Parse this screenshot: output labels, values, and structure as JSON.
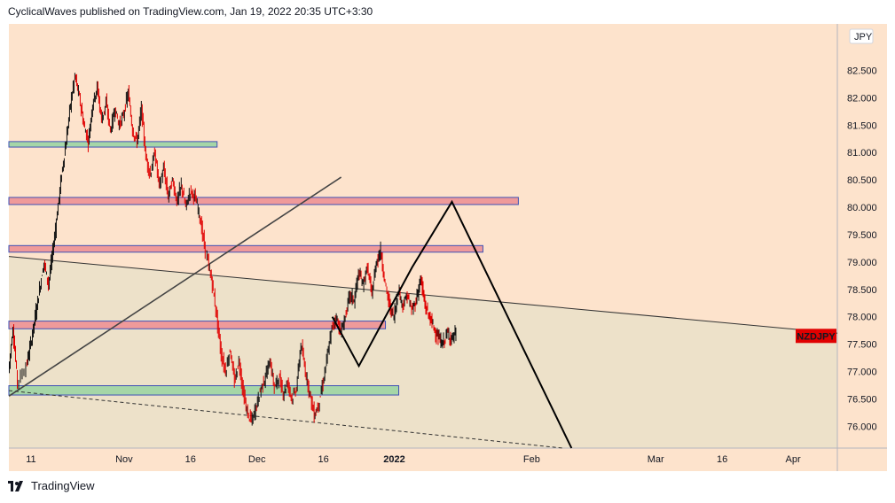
{
  "header": {
    "publisher": "CyclicalWaves published on TradingView.com, Jan 19, 2022 20:35 UTC+3:30"
  },
  "footer": {
    "brand": "TradingView"
  },
  "chart_data": {
    "type": "candlestick",
    "symbol": "NZDJPY",
    "currency": "JPY",
    "last_price": 77.65,
    "y_ticks": [
      "76.000",
      "76.500",
      "77.000",
      "77.500",
      "78.000",
      "78.500",
      "79.000",
      "79.500",
      "80.000",
      "80.500",
      "81.000",
      "81.500",
      "82.000",
      "82.500"
    ],
    "y_tick_values": [
      76.0,
      76.5,
      77.0,
      77.5,
      78.0,
      78.5,
      79.0,
      79.5,
      80.0,
      80.5,
      81.0,
      81.5,
      82.0,
      82.5
    ],
    "ylim": [
      75.6,
      83.35
    ],
    "x_labels": [
      {
        "label": "11",
        "day": 0
      },
      {
        "label": "Nov",
        "day": 21
      },
      {
        "label": "16",
        "day": 36
      },
      {
        "label": "Dec",
        "day": 51
      },
      {
        "label": "16",
        "day": 66
      },
      {
        "label": "2022",
        "day": 82
      },
      {
        "label": "Feb",
        "day": 113
      },
      {
        "label": "Mar",
        "day": 141
      },
      {
        "label": "16",
        "day": 156
      },
      {
        "label": "Apr",
        "day": 172
      }
    ],
    "xlim": [
      -5,
      182
    ],
    "price_path": [
      [
        -5,
        77.0
      ],
      [
        -4,
        77.8
      ],
      [
        -3,
        76.8
      ],
      [
        -1,
        77.1
      ],
      [
        0,
        77.5
      ],
      [
        1,
        78.0
      ],
      [
        2,
        78.5
      ],
      [
        3,
        79.0
      ],
      [
        4,
        78.6
      ],
      [
        5,
        79.2
      ],
      [
        6,
        79.9
      ],
      [
        7,
        80.6
      ],
      [
        8,
        81.2
      ],
      [
        9,
        81.9
      ],
      [
        10,
        82.4
      ],
      [
        11,
        82.0
      ],
      [
        12,
        81.5
      ],
      [
        13,
        81.2
      ],
      [
        14,
        81.9
      ],
      [
        15,
        82.2
      ],
      [
        16,
        81.6
      ],
      [
        17,
        81.9
      ],
      [
        18,
        81.4
      ],
      [
        19,
        81.8
      ],
      [
        20,
        81.5
      ],
      [
        21,
        81.7
      ],
      [
        22,
        82.1
      ],
      [
        23,
        81.4
      ],
      [
        24,
        81.2
      ],
      [
        25,
        81.8
      ],
      [
        26,
        80.9
      ],
      [
        27,
        80.6
      ],
      [
        28,
        81.0
      ],
      [
        29,
        80.4
      ],
      [
        30,
        80.7
      ],
      [
        31,
        80.2
      ],
      [
        32,
        80.5
      ],
      [
        33,
        80.1
      ],
      [
        34,
        80.4
      ],
      [
        35,
        80.0
      ],
      [
        36,
        80.3
      ],
      [
        37,
        80.2
      ],
      [
        38,
        79.9
      ],
      [
        39,
        79.4
      ],
      [
        40,
        79.0
      ],
      [
        41,
        78.6
      ],
      [
        42,
        78.0
      ],
      [
        43,
        77.3
      ],
      [
        44,
        77.0
      ],
      [
        45,
        77.4
      ],
      [
        46,
        76.8
      ],
      [
        47,
        77.2
      ],
      [
        48,
        76.6
      ],
      [
        49,
        76.2
      ],
      [
        50,
        76.1
      ],
      [
        51,
        76.4
      ],
      [
        52,
        76.7
      ],
      [
        53,
        76.9
      ],
      [
        54,
        77.2
      ],
      [
        55,
        76.7
      ],
      [
        56,
        76.9
      ],
      [
        57,
        76.6
      ],
      [
        58,
        76.8
      ],
      [
        59,
        76.5
      ],
      [
        60,
        76.7
      ],
      [
        61,
        77.5
      ],
      [
        62,
        77.0
      ],
      [
        63,
        76.6
      ],
      [
        64,
        76.2
      ],
      [
        65,
        76.4
      ],
      [
        66,
        76.8
      ],
      [
        67,
        77.3
      ],
      [
        68,
        77.8
      ],
      [
        69,
        78.0
      ],
      [
        70,
        77.7
      ],
      [
        71,
        78.0
      ],
      [
        72,
        78.4
      ],
      [
        73,
        78.3
      ],
      [
        74,
        78.8
      ],
      [
        75,
        78.6
      ],
      [
        76,
        78.9
      ],
      [
        77,
        78.4
      ],
      [
        78,
        79.0
      ],
      [
        79,
        79.2
      ],
      [
        80,
        78.6
      ],
      [
        81,
        78.2
      ],
      [
        82,
        78.0
      ],
      [
        83,
        78.5
      ],
      [
        84,
        78.2
      ],
      [
        85,
        78.4
      ],
      [
        86,
        78.1
      ],
      [
        87,
        78.3
      ],
      [
        88,
        78.7
      ],
      [
        89,
        78.2
      ],
      [
        90,
        78.0
      ],
      [
        91,
        77.8
      ],
      [
        92,
        77.6
      ],
      [
        93,
        77.5
      ],
      [
        94,
        77.7
      ],
      [
        95,
        77.6
      ],
      [
        96,
        77.7
      ]
    ],
    "zones": [
      {
        "y_low": 81.1,
        "y_high": 81.2,
        "x_start": -5,
        "x_end": 42,
        "color": "#a5d6a7"
      },
      {
        "y_low": 80.05,
        "y_high": 80.18,
        "x_start": -5,
        "x_end": 110,
        "color": "#ef9a9a"
      },
      {
        "y_low": 79.18,
        "y_high": 79.3,
        "x_start": -5,
        "x_end": 102,
        "color": "#ef9a9a"
      },
      {
        "y_low": 77.78,
        "y_high": 77.92,
        "x_start": -5,
        "x_end": 80,
        "color": "#ef9a9a"
      },
      {
        "y_low": 76.57,
        "y_high": 76.74,
        "x_start": -5,
        "x_end": 83,
        "color": "#a5d6a7"
      }
    ],
    "trendlines": [
      {
        "points": [
          [
            -5,
            76.55
          ],
          [
            70,
            80.55
          ]
        ],
        "style": "solid",
        "color": "#444444",
        "width": 1.6
      },
      {
        "points": [
          [
            -5,
            79.1
          ],
          [
            182,
            77.7
          ]
        ],
        "style": "solid",
        "color": "#333333",
        "width": 1
      },
      {
        "points": [
          [
            -5,
            76.65
          ],
          [
            120,
            75.6
          ]
        ],
        "style": "dashed",
        "color": "#333333",
        "width": 1
      }
    ],
    "projection": [
      [
        68,
        78.0
      ],
      [
        74,
        77.1
      ],
      [
        86,
        78.9
      ],
      [
        95,
        80.1
      ],
      [
        122,
        75.6
      ]
    ],
    "projection_color": "#000000"
  },
  "colors": {
    "bg_upper": "#fde3cc",
    "bg_lower": "#ede1c9",
    "candle_up": "#111111",
    "candle_down": "#e00000",
    "price_label_bg": "#e00000"
  }
}
